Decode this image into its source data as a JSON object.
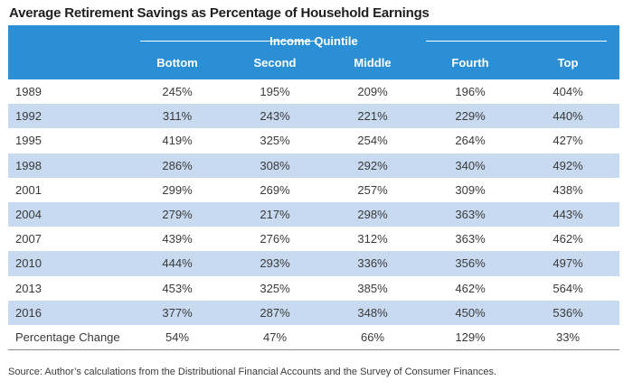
{
  "title": "Average Retirement Savings as Percentage of Household Earnings",
  "chart_data": {
    "type": "table",
    "title": "Average Retirement Savings as Percentage of Household Earnings",
    "group_header": "Income Quintile",
    "columns": [
      "Bottom",
      "Second",
      "Middle",
      "Fourth",
      "Top"
    ],
    "rows": [
      {
        "label": "1989",
        "values": [
          "245%",
          "195%",
          "209%",
          "196%",
          "404%"
        ]
      },
      {
        "label": "1992",
        "values": [
          "311%",
          "243%",
          "221%",
          "229%",
          "440%"
        ]
      },
      {
        "label": "1995",
        "values": [
          "419%",
          "325%",
          "254%",
          "264%",
          "427%"
        ]
      },
      {
        "label": "1998",
        "values": [
          "286%",
          "308%",
          "292%",
          "340%",
          "492%"
        ]
      },
      {
        "label": "2001",
        "values": [
          "299%",
          "269%",
          "257%",
          "309%",
          "438%"
        ]
      },
      {
        "label": "2004",
        "values": [
          "279%",
          "217%",
          "298%",
          "363%",
          "443%"
        ]
      },
      {
        "label": "2007",
        "values": [
          "439%",
          "276%",
          "312%",
          "363%",
          "462%"
        ]
      },
      {
        "label": "2010",
        "values": [
          "444%",
          "293%",
          "336%",
          "356%",
          "497%"
        ]
      },
      {
        "label": "2013",
        "values": [
          "453%",
          "325%",
          "385%",
          "462%",
          "564%"
        ]
      },
      {
        "label": "2016",
        "values": [
          "377%",
          "287%",
          "348%",
          "450%",
          "536%"
        ]
      },
      {
        "label": "Percentage Change",
        "values": [
          "54%",
          "47%",
          "66%",
          "129%",
          "33%"
        ]
      }
    ]
  },
  "source": "Source: Author’s calculations from the Distributional Financial Accounts and the Survey of Consumer Finances.",
  "colors": {
    "header": "#2b8fd6",
    "stripe": "#c7daf0"
  }
}
